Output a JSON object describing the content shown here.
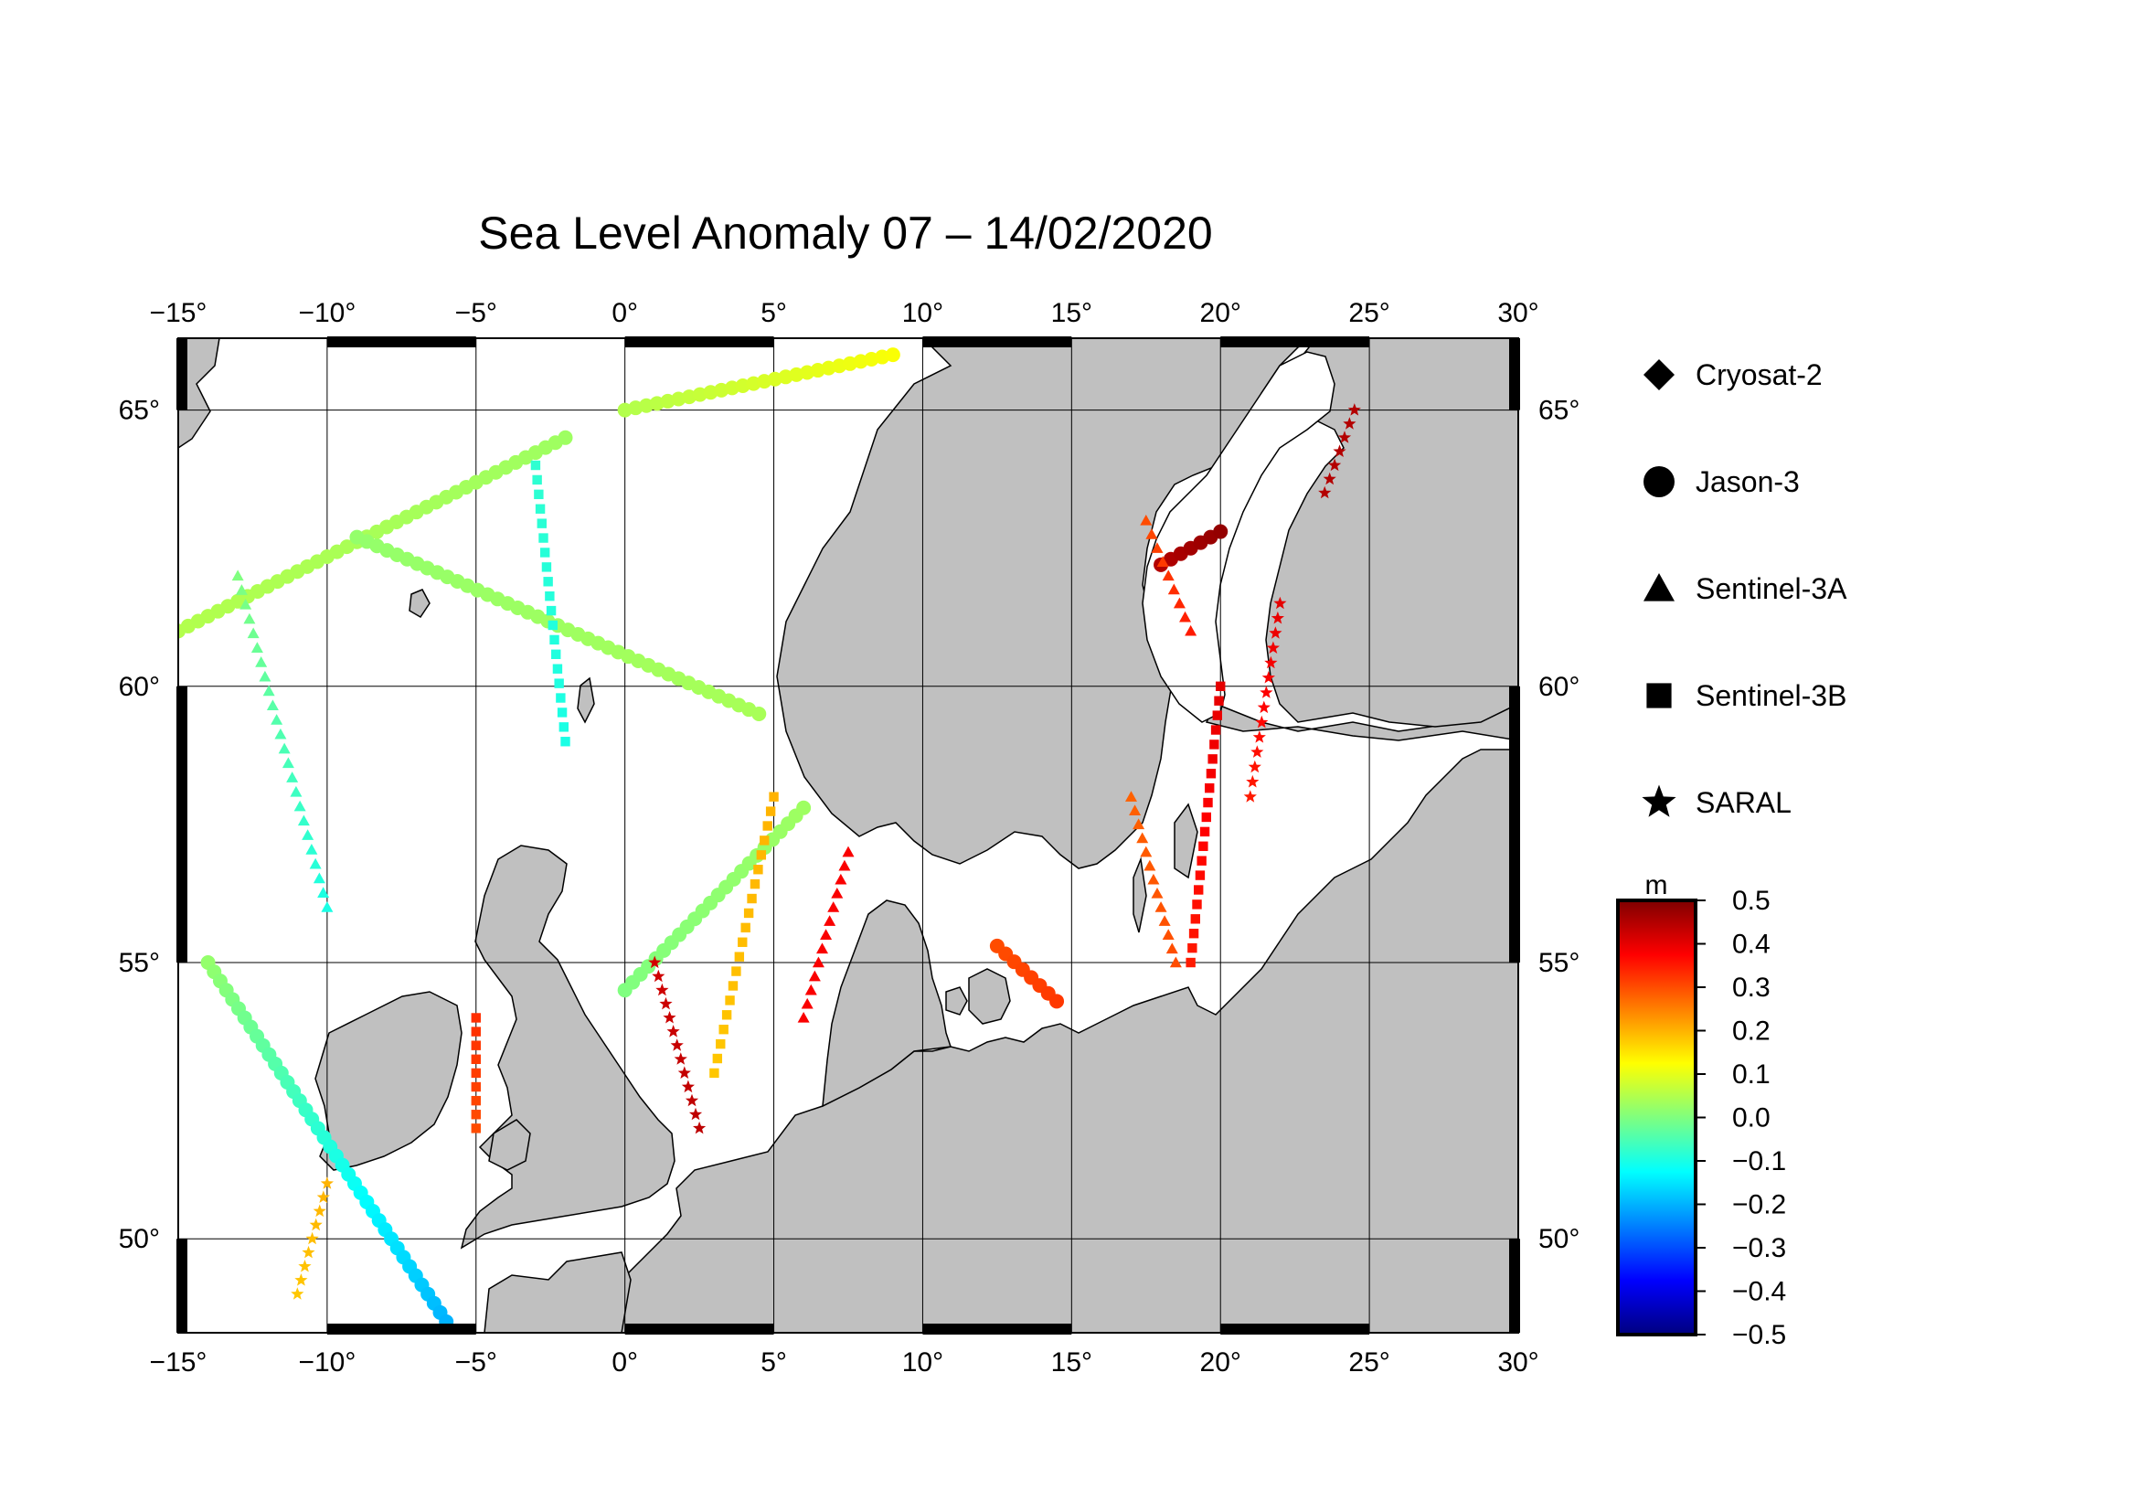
{
  "title": "Sea Level Anomaly 07 – 14/02/2020",
  "map": {
    "lon_range": [
      -15,
      30
    ],
    "lat_range": [
      48.3,
      66.3
    ],
    "lon_ticks": [
      -15,
      -10,
      -5,
      0,
      5,
      10,
      15,
      20,
      25,
      30
    ],
    "lat_ticks": [
      50,
      55,
      60,
      65
    ],
    "lon_labels": [
      "−15°",
      "−10°",
      "−5°",
      "0°",
      "5°",
      "10°",
      "15°",
      "20°",
      "25°",
      "30°"
    ],
    "lat_labels": [
      "50°",
      "55°",
      "60°",
      "65°"
    ],
    "land_color": "#c0c0c0",
    "sea_color": "#ffffff",
    "gridlines": true
  },
  "legend": {
    "items": [
      {
        "name": "Cryosat-2",
        "symbol": "diamond"
      },
      {
        "name": "Jason-3",
        "symbol": "circle"
      },
      {
        "name": "Sentinel-3A",
        "symbol": "triangle"
      },
      {
        "name": "Sentinel-3B",
        "symbol": "square"
      },
      {
        "name": "SARAL",
        "symbol": "star"
      }
    ]
  },
  "colorbar": {
    "unit": "m",
    "min": -0.5,
    "max": 0.5,
    "colormap": "jet",
    "ticks": [
      0.5,
      0.4,
      0.3,
      0.2,
      0.1,
      0.0,
      -0.1,
      -0.2,
      -0.3,
      -0.4,
      -0.5
    ],
    "tick_labels": [
      "0.5",
      "0.4",
      "0.3",
      "0.2",
      "0.1",
      "0.0",
      "−0.1",
      "−0.2",
      "−0.3",
      "−0.4",
      "−0.5"
    ]
  },
  "chart_data": {
    "type": "scatter",
    "x_label": "",
    "y_label": "",
    "tracks": [
      {
        "satellite": "Jason-3",
        "from": [
          -15,
          61
        ],
        "to": [
          -2,
          64.5
        ],
        "sla": [
          0.05,
          0.03
        ]
      },
      {
        "satellite": "Jason-3",
        "from": [
          -14,
          55
        ],
        "to": [
          -6,
          48.5
        ],
        "sla": [
          0.02,
          -0.2
        ]
      },
      {
        "satellite": "Jason-3",
        "from": [
          -9,
          62.7
        ],
        "to": [
          4.5,
          59.5
        ],
        "sla": [
          0.02,
          0.04
        ]
      },
      {
        "satellite": "Jason-3",
        "from": [
          0,
          65
        ],
        "to": [
          9,
          66
        ],
        "sla": [
          0.05,
          0.12
        ]
      },
      {
        "satellite": "Jason-3",
        "from": [
          0,
          54.5
        ],
        "to": [
          6,
          57.8
        ],
        "sla": [
          0.0,
          0.03
        ]
      },
      {
        "satellite": "Jason-3",
        "from": [
          18,
          62.2
        ],
        "to": [
          20,
          62.8
        ],
        "sla": [
          0.45,
          0.48
        ]
      },
      {
        "satellite": "Jason-3",
        "from": [
          12.5,
          55.3
        ],
        "to": [
          14.5,
          54.3
        ],
        "sla": [
          0.3,
          0.32
        ]
      },
      {
        "satellite": "Sentinel-3A",
        "from": [
          -13,
          62
        ],
        "to": [
          -10,
          56
        ],
        "sla": [
          0.0,
          -0.1
        ]
      },
      {
        "satellite": "Sentinel-3A",
        "from": [
          6,
          54
        ],
        "to": [
          7.5,
          57
        ],
        "sla": [
          0.38,
          0.38
        ]
      },
      {
        "satellite": "Sentinel-3A",
        "from": [
          17,
          58
        ],
        "to": [
          18.5,
          55
        ],
        "sla": [
          0.28,
          0.3
        ]
      },
      {
        "satellite": "Sentinel-3A",
        "from": [
          19,
          61
        ],
        "to": [
          17.5,
          63
        ],
        "sla": [
          0.35,
          0.3
        ]
      },
      {
        "satellite": "Sentinel-3B",
        "from": [
          3,
          53
        ],
        "to": [
          5,
          58
        ],
        "sla": [
          0.18,
          0.2
        ]
      },
      {
        "satellite": "Sentinel-3B",
        "from": [
          20,
          60
        ],
        "to": [
          19,
          55
        ],
        "sla": [
          0.4,
          0.35
        ]
      },
      {
        "satellite": "Sentinel-3B",
        "from": [
          -3,
          64
        ],
        "to": [
          -2,
          59
        ],
        "sla": [
          -0.08,
          -0.1
        ]
      },
      {
        "satellite": "Sentinel-3B",
        "from": [
          -5,
          54
        ],
        "to": [
          -5,
          52
        ],
        "sla": [
          0.33,
          0.3
        ]
      },
      {
        "satellite": "SARAL",
        "from": [
          1,
          55
        ],
        "to": [
          2.5,
          52
        ],
        "sla": [
          0.42,
          0.44
        ]
      },
      {
        "satellite": "SARAL",
        "from": [
          22,
          61.5
        ],
        "to": [
          21,
          58
        ],
        "sla": [
          0.4,
          0.35
        ]
      },
      {
        "satellite": "SARAL",
        "from": [
          23.5,
          63.5
        ],
        "to": [
          24.5,
          65
        ],
        "sla": [
          0.45,
          0.45
        ]
      },
      {
        "satellite": "SARAL",
        "from": [
          -11,
          49
        ],
        "to": [
          -10,
          51
        ],
        "sla": [
          0.18,
          0.2
        ]
      }
    ]
  }
}
